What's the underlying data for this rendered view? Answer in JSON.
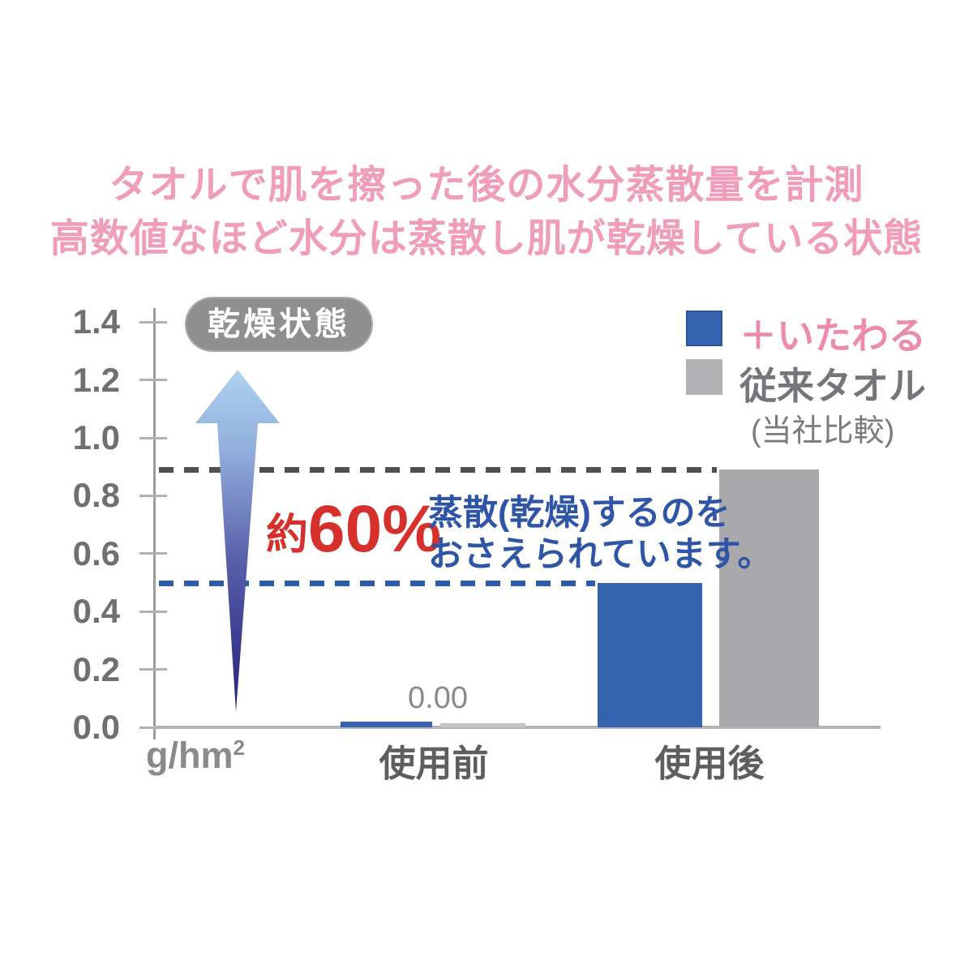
{
  "title": {
    "line1": "タオルで肌を擦った後の水分蒸散量を計測",
    "line2": "高数値なほど水分は蒸散し肌が乾燥している状態"
  },
  "legend": {
    "series1": "＋いたわる",
    "series2": "従来タオル",
    "note": "(当社比較)"
  },
  "annotations": {
    "dry_state_badge": "乾燥状態",
    "reduction_prefix": "約",
    "reduction_value": "60%",
    "blue_note_line1": "蒸散(乾燥)するのを",
    "blue_note_line2": "おさえられています。",
    "zero_value_label": "0.00"
  },
  "colors": {
    "title_pink": "#ef9dbb",
    "legend_pink": "#ec8bac",
    "red": "#d5302b",
    "note_blue": "#2e55a6",
    "bar_blue": "#3563ad",
    "bar_gray": "#a9a9ab",
    "guide_gray": "#515151",
    "guide_blue": "#2d5cad",
    "badge_gray": "#8f8f8f"
  },
  "chart_data": {
    "type": "bar",
    "title": "タオルで肌を擦った後の水分蒸散量を計測（高数値なほど水分は蒸散し肌が乾燥している状態）",
    "categories": [
      "使用前",
      "使用後"
    ],
    "series": [
      {
        "name": "＋いたわる",
        "color": "#3563ad",
        "color_zero": "#3563ad",
        "values": [
          0.0,
          0.5
        ]
      },
      {
        "name": "従来タオル",
        "color": "#a9a9ab",
        "color_zero": "#c3c3c5",
        "values": [
          0.0,
          0.89
        ]
      }
    ],
    "unit_base": "g/hm",
    "unit_sup": "2",
    "ylim": [
      0,
      1.4
    ],
    "yticks": [
      0,
      0.2,
      0.4,
      0.6,
      0.8,
      1.0,
      1.2,
      1.4
    ],
    "guides": [
      {
        "value": 0.89,
        "color": "#515151"
      },
      {
        "value": 0.5,
        "color": "#2d5cad"
      }
    ],
    "value_labels": {
      "before_use": "0.00"
    },
    "legend_position": "top-right",
    "grid": false
  }
}
